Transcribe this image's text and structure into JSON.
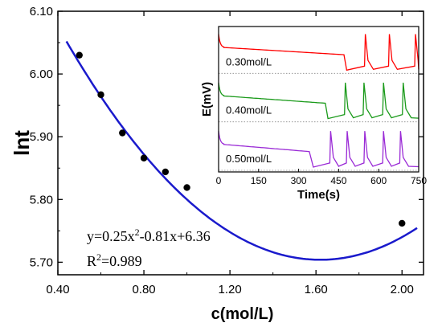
{
  "chart_data": [
    {
      "type": "scatter",
      "xlabel": "c(mol/L)",
      "ylabel": "lnt",
      "xlim": [
        0.4,
        2.1
      ],
      "ylim": [
        5.68,
        6.1
      ],
      "x_ticks": [
        "0.40",
        "0.80",
        "1.20",
        "1.60",
        "2.00"
      ],
      "y_ticks": [
        "5.70",
        "5.80",
        "5.90",
        "6.00",
        "6.10"
      ],
      "points": [
        {
          "x": 0.5,
          "y": 6.03
        },
        {
          "x": 0.6,
          "y": 5.967
        },
        {
          "x": 0.7,
          "y": 5.906
        },
        {
          "x": 0.8,
          "y": 5.866
        },
        {
          "x": 0.9,
          "y": 5.844
        },
        {
          "x": 1.0,
          "y": 5.819
        },
        {
          "x": 2.0,
          "y": 5.762
        }
      ],
      "fit": {
        "a": 0.25,
        "b": -0.81,
        "c": 6.36,
        "x_range": [
          0.44,
          2.07
        ],
        "color": "#1a1acc"
      },
      "point_color": "#000000",
      "equation": {
        "prefix": "y=0.25x",
        "sup": "2",
        "suffix": "-0.81x+6.36"
      },
      "r_squared": {
        "prefix": "R",
        "sup": "2",
        "suffix": "=0.989"
      }
    },
    {
      "type": "line",
      "xlabel": "Time(s)",
      "ylabel": "E(mV)",
      "xlim": [
        0,
        750
      ],
      "x_ticks": [
        "0",
        "150",
        "300",
        "450",
        "600",
        "750"
      ],
      "series": [
        {
          "name": "0.30mol/L",
          "color": "#ff0000",
          "onset_s": 480,
          "spikes_s": [
            550,
            640,
            738
          ]
        },
        {
          "name": "0.40mol/L",
          "color": "#1a9a1a",
          "onset_s": 410,
          "spikes_s": [
            475,
            545,
            618,
            692
          ]
        },
        {
          "name": "0.50mol/L",
          "color": "#9a2ad6",
          "onset_s": 355,
          "spikes_s": [
            420,
            482,
            548,
            618,
            682
          ]
        }
      ]
    }
  ]
}
